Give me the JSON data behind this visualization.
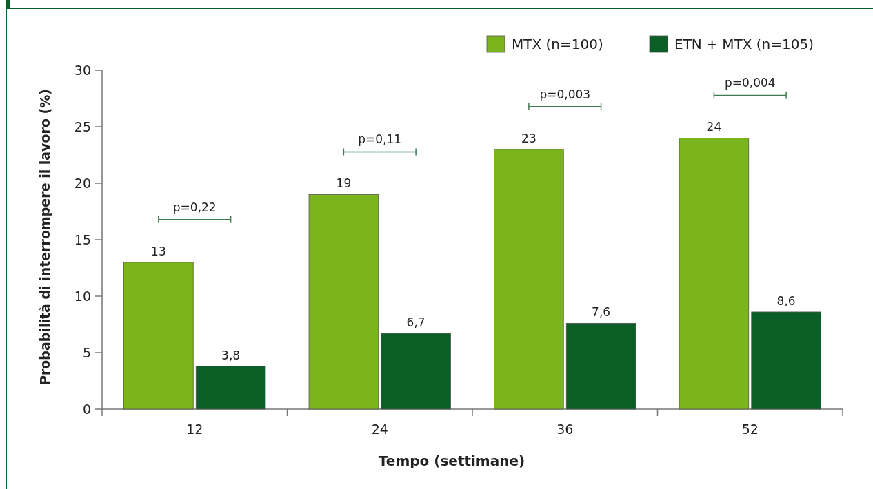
{
  "chart_data": {
    "type": "bar",
    "xlabel": "Tempo (settimane)",
    "ylabel": "Probabilità di interrompere il lavoro (%)",
    "categories": [
      "12",
      "24",
      "36",
      "52"
    ],
    "series": [
      {
        "name": "MTX (n=100)",
        "color": "#7ab51d",
        "values": [
          13,
          19,
          23,
          24
        ],
        "value_labels": [
          "13",
          "19",
          "23",
          "24"
        ]
      },
      {
        "name": "ETN + MTX (n=105)",
        "color": "#0b5e26",
        "values": [
          3.8,
          6.7,
          7.6,
          8.6
        ],
        "value_labels": [
          "3,8",
          "6,7",
          "7,6",
          "8,6"
        ]
      }
    ],
    "ylim": [
      0,
      30
    ],
    "yticks": [
      0,
      5,
      10,
      15,
      20,
      25,
      30
    ],
    "grid": false,
    "legend": "top right",
    "annotations": [
      "p=0,22",
      "p=0,11",
      "p=0,003",
      "p=0,004"
    ]
  }
}
